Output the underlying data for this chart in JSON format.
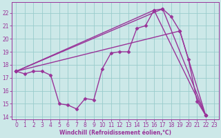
{
  "background_color": "#cce8e8",
  "grid_color": "#99cccc",
  "line_color": "#993399",
  "marker": "D",
  "markersize": 2.5,
  "linewidth": 1.0,
  "xlabel": "Windchill (Refroidissement éolien,°C)",
  "xlim": [
    -0.5,
    23.5
  ],
  "ylim": [
    13.8,
    22.8
  ],
  "yticks": [
    14,
    15,
    16,
    17,
    18,
    19,
    20,
    21,
    22
  ],
  "xticks": [
    0,
    1,
    2,
    3,
    4,
    5,
    6,
    7,
    8,
    9,
    10,
    11,
    12,
    13,
    14,
    15,
    16,
    17,
    18,
    19,
    20,
    21,
    22,
    23
  ],
  "lines": [
    {
      "x": [
        0,
        1,
        2,
        3,
        4,
        5,
        6,
        7,
        8,
        9,
        10,
        11,
        12,
        13,
        14,
        15,
        16,
        17,
        18,
        19,
        20,
        21,
        22
      ],
      "y": [
        17.5,
        17.3,
        17.5,
        17.5,
        17.2,
        15.0,
        14.9,
        14.6,
        15.4,
        15.3,
        17.7,
        18.9,
        19.0,
        19.0,
        20.8,
        21.0,
        22.2,
        22.3,
        21.7,
        20.6,
        18.4,
        15.2,
        14.1
      ]
    },
    {
      "x": [
        0,
        16,
        22
      ],
      "y": [
        17.5,
        22.2,
        14.1
      ]
    },
    {
      "comment": "straight line: start(0,17.5) to (17,22.3) to end(22,14.1)",
      "x": [
        0,
        17,
        22
      ],
      "y": [
        17.5,
        22.3,
        14.1
      ]
    },
    {
      "comment": "straight line: start(0,17.5) to (19,20.6) to end(22,14.1)",
      "x": [
        0,
        19,
        22
      ],
      "y": [
        17.5,
        20.6,
        14.1
      ]
    }
  ]
}
